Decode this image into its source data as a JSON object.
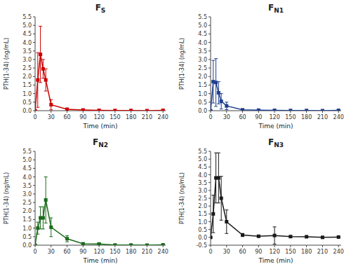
{
  "chart_data": [
    {
      "type": "line",
      "title": "FS",
      "xlabel": "Time (min)",
      "ylabel": "PTH(1-34) (ng/mL)",
      "x": [
        0,
        5,
        10,
        15,
        20,
        30,
        60,
        90,
        120,
        150,
        180,
        210,
        240
      ],
      "xlim": [
        0,
        245
      ],
      "xticks": [
        0,
        30,
        60,
        90,
        120,
        150,
        180,
        210,
        240
      ],
      "ylim": [
        0,
        5.5
      ],
      "yticks": [
        {
          "value": 0,
          "label": "0.0"
        },
        0.5,
        {
          "value": 1,
          "label": "1.0"
        },
        1.5,
        {
          "value": 2,
          "label": "2.0"
        },
        2.5,
        {
          "value": 3,
          "label": "3.0"
        },
        3.5,
        {
          "value": 4,
          "label": "4.0"
        },
        4.5,
        {
          "value": 5,
          "label": "5.0"
        },
        5.5
      ],
      "grid": false,
      "series": [
        {
          "color": "#CC0000",
          "marker": "square",
          "line_style": "solid",
          "values": [
            0.0,
            1.8,
            3.3,
            2.45,
            1.8,
            0.35,
            0.08,
            0.04,
            0.02,
            0.01,
            0.01,
            0.0,
            0.02
          ],
          "errors": [
            0.0,
            1.6,
            1.65,
            0.55,
            0.65,
            0.3,
            0.07,
            0.03,
            0.02,
            0.01,
            0.01,
            0.0,
            0.02
          ]
        }
      ]
    },
    {
      "type": "line",
      "title": "FN1",
      "xlabel": "Time (min)",
      "ylabel": "PTH(1-34) (ng/mL)",
      "x": [
        0,
        5,
        10,
        15,
        20,
        30,
        60,
        90,
        120,
        150,
        180,
        210,
        240
      ],
      "xlim": [
        0,
        245
      ],
      "xticks": [
        0,
        30,
        60,
        90,
        120,
        150,
        180,
        210,
        240
      ],
      "ylim": [
        0,
        5.5
      ],
      "yticks": [
        {
          "value": 0,
          "label": "0.0"
        },
        0.5,
        {
          "value": 1,
          "label": "1.0"
        },
        1.5,
        {
          "value": 2,
          "label": "2.0"
        },
        2.5,
        {
          "value": 3,
          "label": "3.0"
        },
        3.5,
        {
          "value": 4,
          "label": "4.0"
        },
        4.5,
        {
          "value": 5,
          "label": "5.0"
        },
        5.5
      ],
      "grid": false,
      "series": [
        {
          "color": "#1F3E8F",
          "marker": "square",
          "line_style": "solid",
          "values": [
            0.0,
            1.7,
            1.65,
            1.05,
            0.55,
            0.28,
            0.05,
            0.03,
            0.02,
            0.01,
            0.01,
            0.0,
            0.02
          ],
          "errors": [
            0.0,
            1.25,
            1.4,
            0.65,
            0.45,
            0.22,
            0.04,
            0.02,
            0.02,
            0.01,
            0.01,
            0.0,
            0.02
          ]
        }
      ]
    },
    {
      "type": "line",
      "title": "FN2",
      "xlabel": "Time (min)",
      "ylabel": "PTH(1-34) (ng/mL)",
      "x": [
        0,
        5,
        10,
        15,
        20,
        30,
        60,
        90,
        120,
        150,
        180,
        210,
        240
      ],
      "xlim": [
        0,
        245
      ],
      "xticks": [
        0,
        30,
        60,
        90,
        120,
        150,
        180,
        210,
        240
      ],
      "ylim": [
        0,
        5.5
      ],
      "yticks": [
        {
          "value": 0,
          "label": "0.0"
        },
        0.5,
        {
          "value": 1,
          "label": "1.0"
        },
        1.5,
        {
          "value": 2,
          "label": "2.0"
        },
        2.5,
        {
          "value": 3,
          "label": "3.0"
        },
        3.5,
        {
          "value": 4,
          "label": "4.0"
        },
        4.5,
        {
          "value": 5,
          "label": "5.0"
        },
        5.5
      ],
      "grid": false,
      "series": [
        {
          "color": "#1A6B1A",
          "marker": "square",
          "line_style": "solid",
          "values": [
            0.0,
            1.0,
            1.6,
            1.6,
            2.65,
            1.05,
            0.38,
            0.08,
            0.07,
            0.01,
            0.01,
            0.0,
            0.02
          ],
          "errors": [
            0.0,
            0.35,
            0.65,
            0.65,
            1.35,
            0.55,
            0.18,
            0.05,
            0.05,
            0.01,
            0.01,
            0.0,
            0.02
          ]
        }
      ]
    },
    {
      "type": "line",
      "title": "FN3",
      "xlabel": "Time (min)",
      "ylabel": "PTH(1-34) (ng/mL)",
      "x": [
        0,
        5,
        10,
        15,
        20,
        30,
        60,
        90,
        120,
        150,
        180,
        210,
        240
      ],
      "xlim": [
        0,
        245
      ],
      "xticks": [
        0,
        30,
        60,
        90,
        120,
        150,
        180,
        210,
        240
      ],
      "ylim": [
        -0.5,
        5.5
      ],
      "yticks": [
        -0.5,
        {
          "value": 0,
          "label": "0.0"
        },
        0.5,
        {
          "value": 1,
          "label": "1.0"
        },
        1.5,
        {
          "value": 2,
          "label": "2.0"
        },
        2.5,
        {
          "value": 3,
          "label": "3.0"
        },
        3.5,
        {
          "value": 4,
          "label": "4.0"
        },
        4.5,
        {
          "value": 5,
          "label": "5.0"
        },
        5.5
      ],
      "grid": false,
      "series": [
        {
          "color": "#1a1a1a",
          "marker": "square",
          "line_style": "solid",
          "values": [
            0.0,
            1.5,
            3.8,
            3.8,
            2.5,
            1.0,
            0.15,
            0.07,
            0.12,
            0.05,
            0.04,
            0.0,
            0.02
          ],
          "errors": [
            0.0,
            1.2,
            1.6,
            1.6,
            1.4,
            0.75,
            0.1,
            0.05,
            0.55,
            0.04,
            0.03,
            0.0,
            0.02
          ]
        }
      ]
    }
  ]
}
